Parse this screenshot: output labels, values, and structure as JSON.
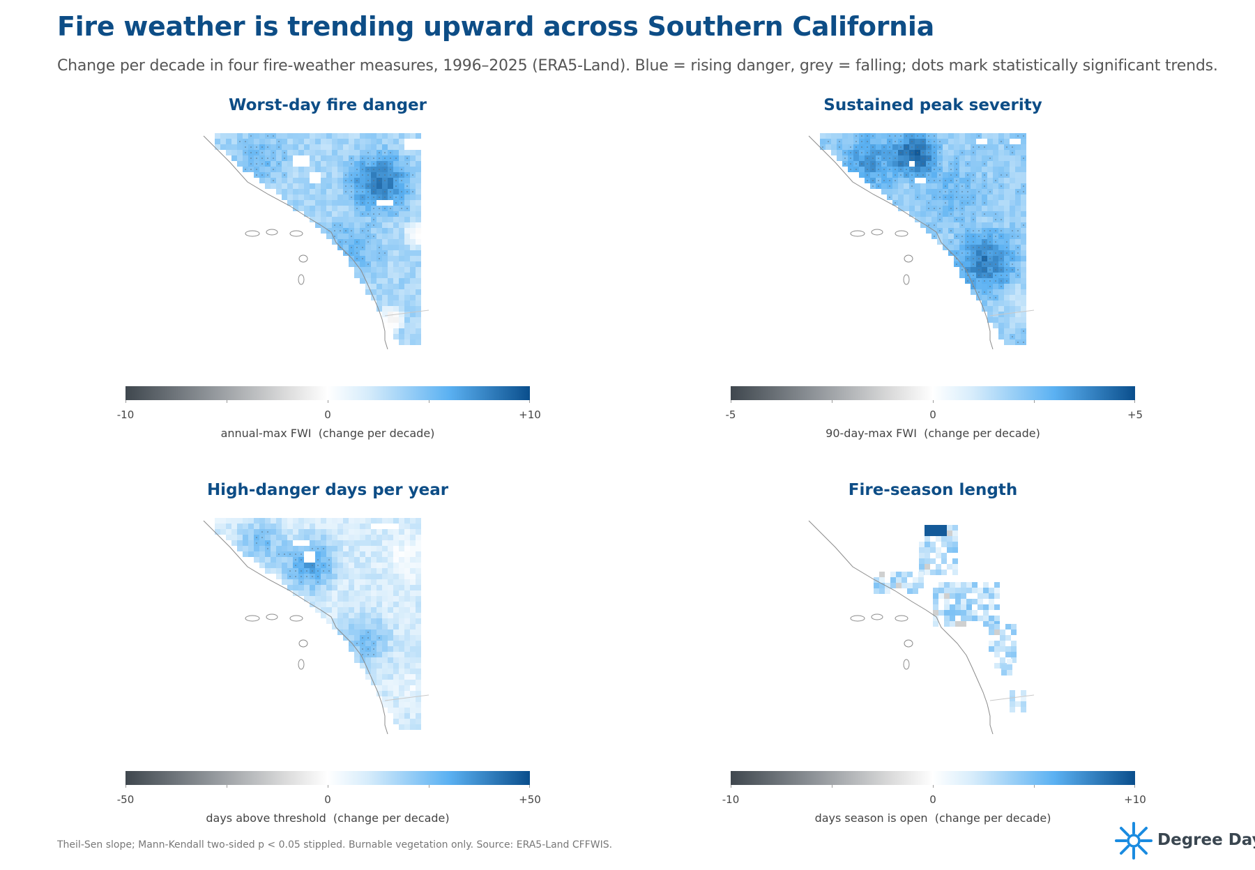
{
  "title": "Fire weather is trending upward across Southern California",
  "subtitle": "Change per decade in four fire-weather measures, 1996–2025 (ERA5-Land). Blue = rising danger, grey = falling; dots mark statistically significant trends.",
  "footnote": "Theil-Sen slope; Mann-Kendall two-sided p < 0.05 stippled. Burnable vegetation only. Source: ERA5-Land CFFWIS.",
  "brand": {
    "name": "Degree Day",
    "icon": "snowflake-sun-icon"
  },
  "colors": {
    "title": "#0d4d86",
    "positive_max": "#0a4e8c",
    "positive_mid": "#5bb1f2",
    "zero": "#ffffff",
    "negative_max": "#3f474e"
  },
  "chart_data": [
    {
      "type": "heatmap",
      "title": "Worst-day fire danger",
      "colorbar": {
        "min": -10,
        "max": 10,
        "tick_labels": [
          "-10",
          "0",
          "+10"
        ],
        "label": "annual-max FWI  (change per decade)"
      }
    },
    {
      "type": "heatmap",
      "title": "Sustained peak severity",
      "colorbar": {
        "min": -5,
        "max": 5,
        "tick_labels": [
          "-5",
          "0",
          "+5"
        ],
        "label": "90-day-max FWI  (change per decade)"
      }
    },
    {
      "type": "heatmap",
      "title": "High-danger days per year",
      "colorbar": {
        "min": -50,
        "max": 50,
        "tick_labels": [
          "-50",
          "0",
          "+50"
        ],
        "label": "days above threshold  (change per decade)"
      }
    },
    {
      "type": "heatmap",
      "title": "Fire-season length",
      "colorbar": {
        "min": -10,
        "max": 10,
        "tick_labels": [
          "-10",
          "0",
          "+10"
        ],
        "label": "days season is open  (change per decade)"
      }
    }
  ]
}
